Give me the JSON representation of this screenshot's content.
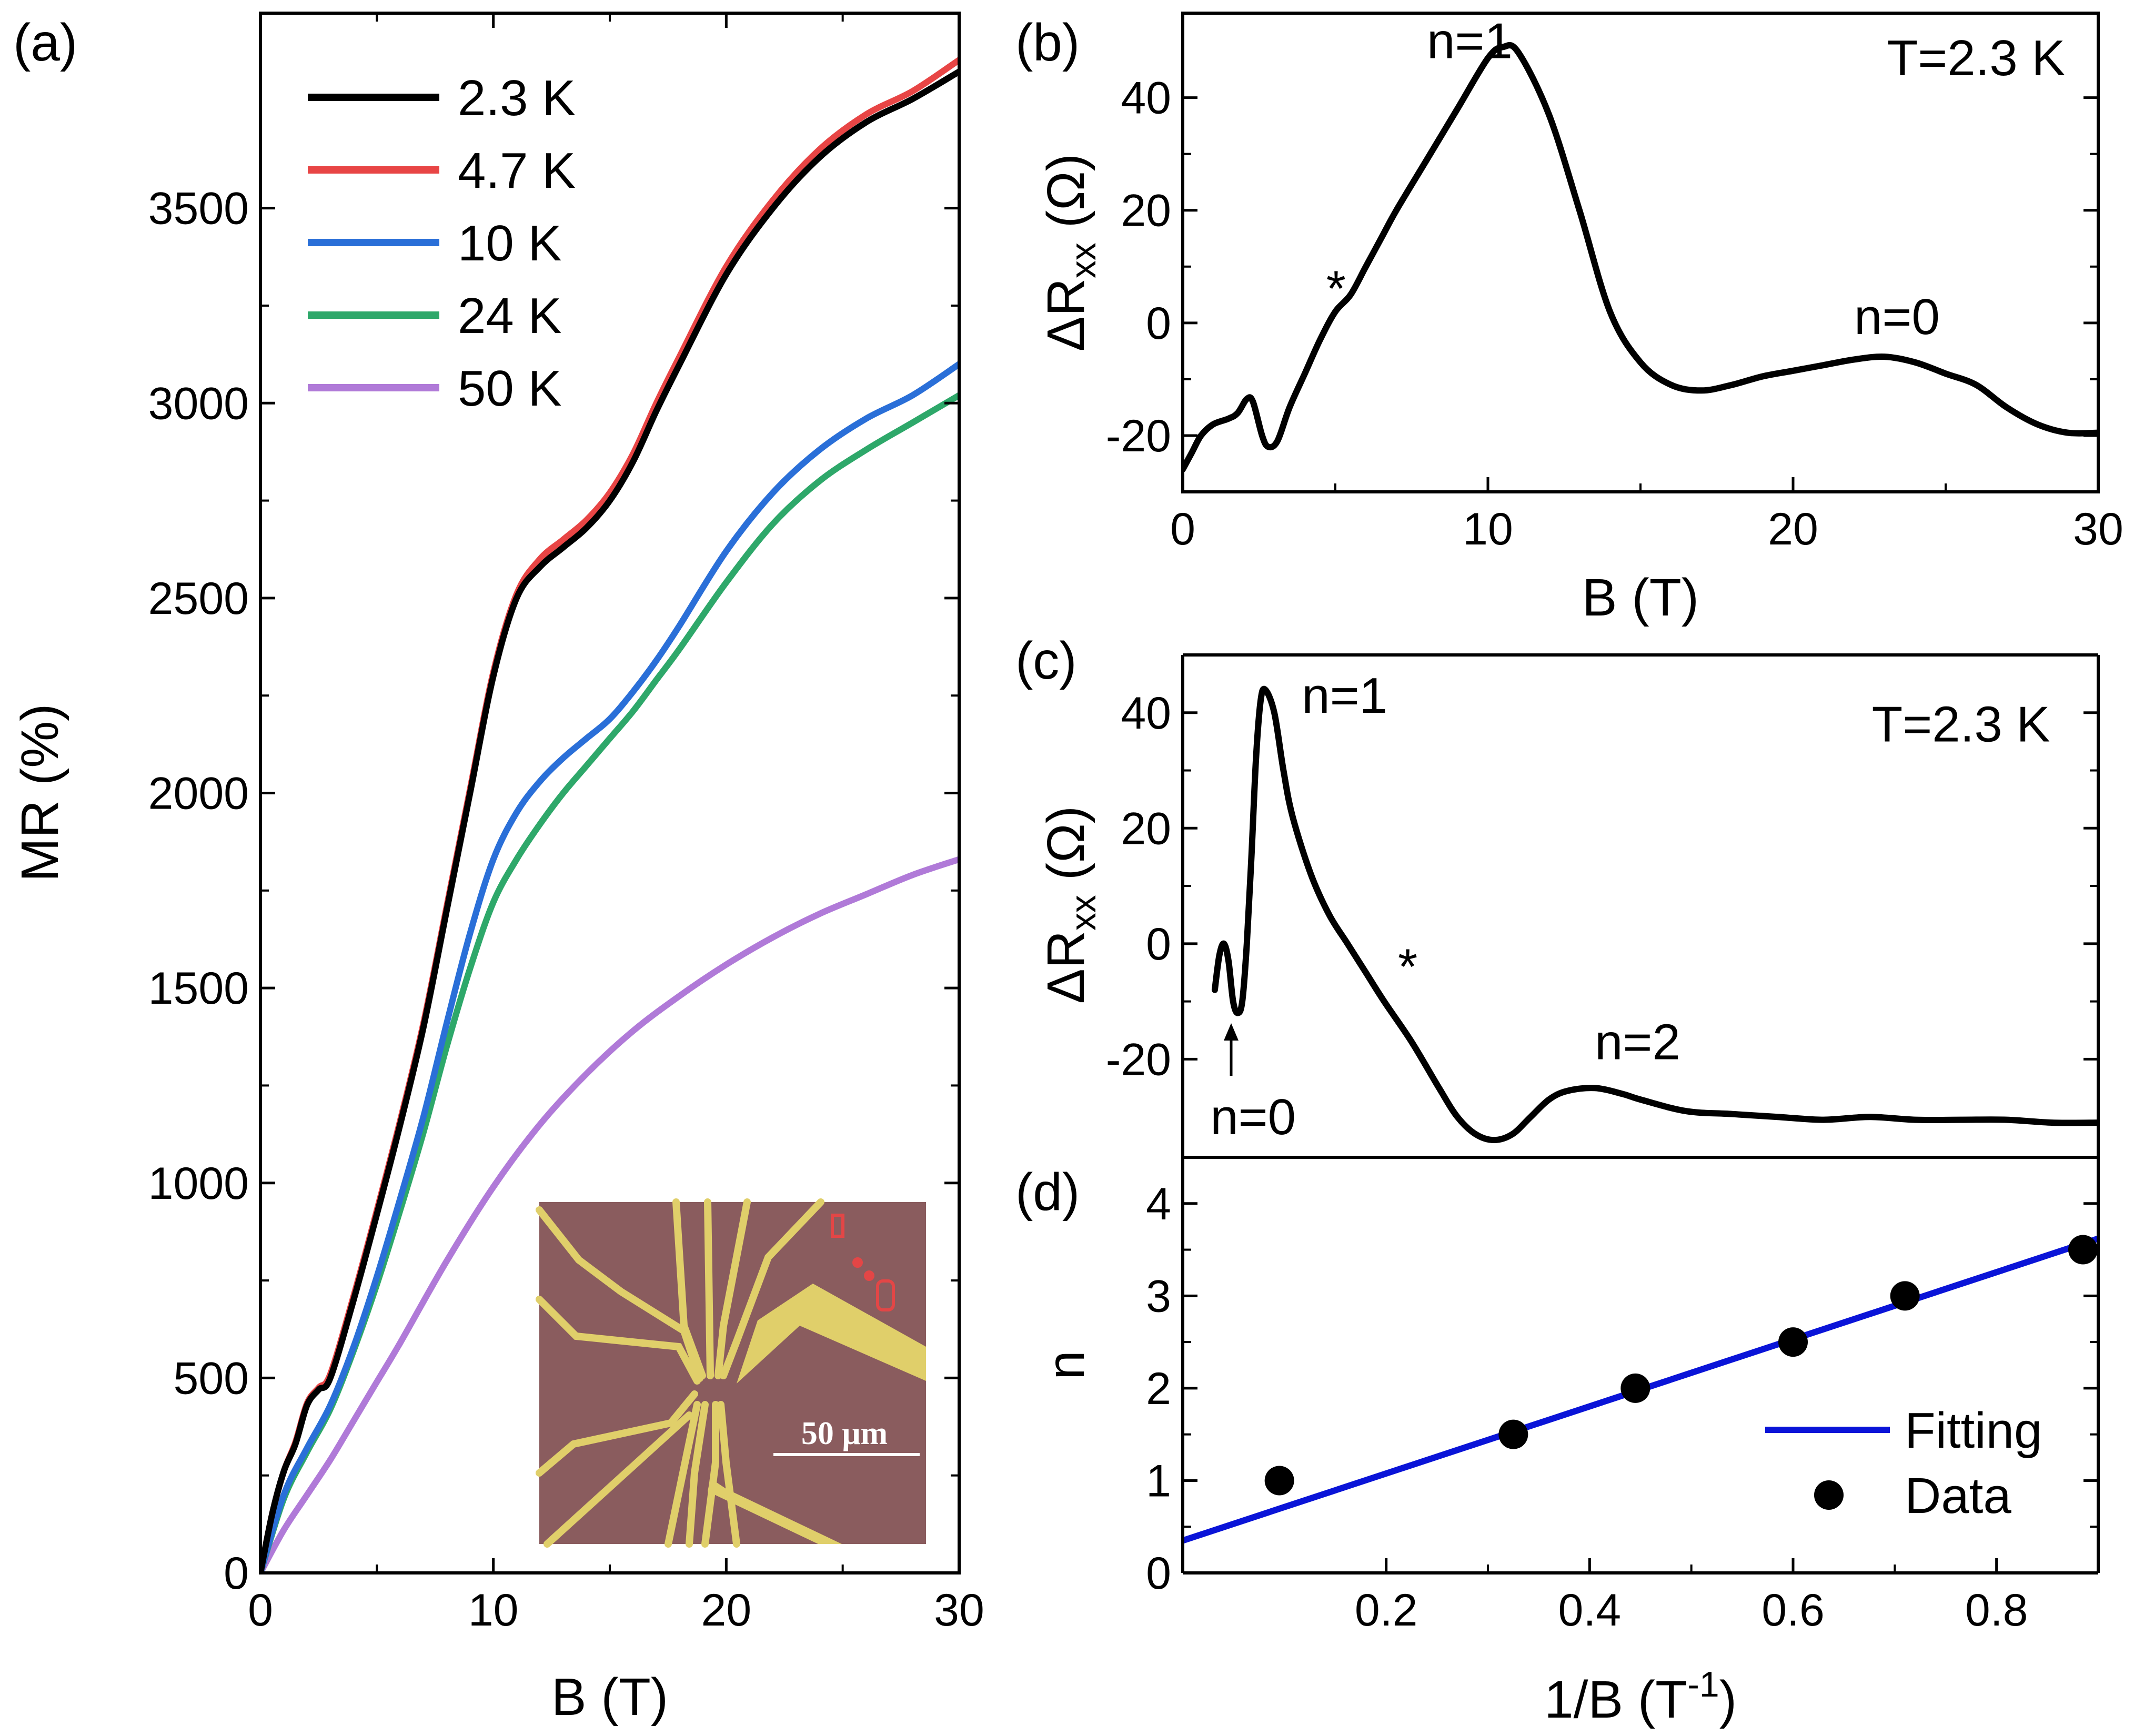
{
  "figure": {
    "panel_labels": [
      "(a)",
      "(b)",
      "(c)",
      "(d)"
    ],
    "inset": {
      "scale_bar_label": "50 μm",
      "description_colors": {
        "substrate": "#8a5c5e",
        "electrodes": "#e0cf6a"
      }
    }
  },
  "chart_data": [
    {
      "id": "a",
      "type": "line",
      "xlabel": "B (T)",
      "ylabel": "MR (%)",
      "xlim": [
        0,
        30
      ],
      "ylim": [
        0,
        4000
      ],
      "xticks": [
        0,
        10,
        20,
        30
      ],
      "yticks": [
        0,
        500,
        1000,
        1500,
        2000,
        2500,
        3000,
        3500
      ],
      "legend_position": "top-left",
      "series": [
        {
          "name": "2.3 K",
          "color": "#000000",
          "x": [
            0,
            0.5,
            1,
            1.5,
            2,
            2.5,
            3,
            4,
            5,
            6,
            7,
            8,
            9,
            10,
            11,
            12,
            13,
            14,
            15,
            16,
            17,
            18,
            20,
            22,
            24,
            26,
            28,
            30
          ],
          "values": [
            0,
            150,
            260,
            330,
            430,
            470,
            500,
            700,
            920,
            1150,
            1400,
            1700,
            2000,
            2300,
            2500,
            2580,
            2630,
            2680,
            2750,
            2850,
            2980,
            3100,
            3330,
            3500,
            3630,
            3720,
            3780,
            3850
          ]
        },
        {
          "name": "4.7 K",
          "color": "#e84545",
          "x": [
            0,
            0.5,
            1,
            1.5,
            2,
            2.5,
            3,
            4,
            5,
            6,
            7,
            8,
            9,
            10,
            11,
            12,
            13,
            14,
            15,
            16,
            17,
            18,
            20,
            22,
            24,
            26,
            28,
            30
          ],
          "values": [
            0,
            150,
            260,
            335,
            435,
            475,
            510,
            710,
            930,
            1160,
            1410,
            1710,
            2010,
            2310,
            2510,
            2600,
            2650,
            2700,
            2770,
            2870,
            3000,
            3120,
            3350,
            3520,
            3650,
            3740,
            3800,
            3880
          ]
        },
        {
          "name": "10 K",
          "color": "#2a6fd8",
          "x": [
            0,
            1,
            2,
            3,
            4,
            5,
            6,
            7,
            8,
            9,
            10,
            11,
            12,
            13,
            14,
            15,
            16,
            17,
            18,
            20,
            22,
            24,
            26,
            28,
            30
          ],
          "values": [
            0,
            200,
            320,
            430,
            580,
            760,
            960,
            1170,
            1410,
            1640,
            1830,
            1950,
            2030,
            2090,
            2140,
            2190,
            2260,
            2340,
            2430,
            2620,
            2770,
            2880,
            2960,
            3020,
            3100
          ]
        },
        {
          "name": "24 K",
          "color": "#2ea86a",
          "x": [
            0,
            1,
            2,
            3,
            4,
            5,
            6,
            7,
            8,
            9,
            10,
            11,
            12,
            13,
            14,
            15,
            16,
            17,
            18,
            20,
            22,
            24,
            26,
            28,
            30
          ],
          "values": [
            0,
            190,
            310,
            420,
            570,
            740,
            930,
            1130,
            1350,
            1550,
            1720,
            1830,
            1920,
            2000,
            2070,
            2140,
            2210,
            2290,
            2370,
            2540,
            2690,
            2800,
            2880,
            2950,
            3020
          ]
        },
        {
          "name": "50 K",
          "color": "#b07ad8",
          "x": [
            0,
            1,
            2,
            3,
            4,
            5,
            6,
            8,
            10,
            12,
            14,
            16,
            18,
            20,
            22,
            24,
            26,
            28,
            30
          ],
          "values": [
            0,
            110,
            200,
            290,
            390,
            490,
            590,
            800,
            990,
            1150,
            1280,
            1390,
            1480,
            1560,
            1630,
            1690,
            1740,
            1790,
            1830
          ]
        }
      ]
    },
    {
      "id": "b",
      "type": "line",
      "xlabel": "B (T)",
      "ylabel": "ΔR",
      "ylabel_sub": "xx",
      "ylabel_unit": " (Ω)",
      "xlim": [
        0,
        30
      ],
      "ylim": [
        -30,
        55
      ],
      "xticks": [
        0,
        10,
        20,
        30
      ],
      "yticks": [
        -20,
        0,
        20,
        40
      ],
      "annotations": [
        {
          "text": "n=1",
          "x": 8,
          "y": 47
        },
        {
          "text": "*",
          "x": 4.7,
          "y": 3
        },
        {
          "text": "n=0",
          "x": 22,
          "y": -2
        },
        {
          "text": "T=2.3 K",
          "x": 26,
          "y": 44
        }
      ],
      "series": [
        {
          "name": "ΔRxx",
          "color": "#000000",
          "x": [
            0,
            0.3,
            0.6,
            1,
            1.5,
            1.8,
            2.1,
            2.3,
            2.6,
            2.8,
            3.1,
            3.5,
            4,
            4.5,
            5,
            5.5,
            6,
            6.5,
            7,
            8,
            9,
            10,
            10.5,
            11,
            12,
            13,
            14,
            15,
            16,
            17,
            18,
            19,
            20,
            21,
            22,
            23,
            24,
            25,
            26,
            27,
            28,
            29,
            30
          ],
          "values": [
            -26,
            -23,
            -20,
            -18,
            -17,
            -16,
            -13.5,
            -14,
            -20,
            -22,
            -21,
            -15,
            -9,
            -3,
            2,
            5,
            10,
            15,
            20,
            29,
            38,
            47,
            49,
            48,
            37,
            20,
            2,
            -7,
            -11,
            -12,
            -11,
            -9.5,
            -8.5,
            -7.5,
            -6.5,
            -6,
            -7,
            -9,
            -11,
            -15,
            -18,
            -19.5,
            -19.5
          ]
        }
      ]
    },
    {
      "id": "c",
      "type": "line",
      "xlabel": "",
      "ylabel": "ΔR",
      "ylabel_sub": "xx",
      "ylabel_unit": " (Ω)",
      "xlim": [
        0,
        1
      ],
      "ylim": [
        -37,
        50
      ],
      "yticks": [
        -20,
        0,
        20,
        40
      ],
      "annotations": [
        {
          "text": "n=1",
          "x": 0.13,
          "y": 40
        },
        {
          "text": "*",
          "x": 0.235,
          "y": -7
        },
        {
          "text": "n=2",
          "x": 0.45,
          "y": -20
        },
        {
          "text": "n=0",
          "x": 0.03,
          "y": -33
        },
        {
          "text": "T=2.3 K",
          "x": 0.85,
          "y": 35
        }
      ],
      "series": [
        {
          "name": "ΔRxx",
          "color": "#000000",
          "x": [
            0.035,
            0.04,
            0.045,
            0.05,
            0.055,
            0.06,
            0.065,
            0.07,
            0.075,
            0.08,
            0.085,
            0.09,
            0.1,
            0.11,
            0.12,
            0.14,
            0.16,
            0.18,
            0.2,
            0.22,
            0.25,
            0.28,
            0.3,
            0.32,
            0.34,
            0.36,
            0.38,
            0.4,
            0.42,
            0.45,
            0.48,
            0.5,
            0.55,
            0.6,
            0.65,
            0.7,
            0.75,
            0.8,
            0.85,
            0.9,
            0.95,
            1.0
          ],
          "values": [
            -8,
            -2,
            0,
            -3,
            -10,
            -12,
            -10,
            0,
            15,
            32,
            42,
            44,
            40,
            30,
            22,
            12,
            5,
            0,
            -5,
            -10,
            -17,
            -25,
            -30,
            -33,
            -34,
            -33,
            -30,
            -27,
            -25.5,
            -25,
            -26,
            -27,
            -29,
            -29.5,
            -30,
            -30.5,
            -30,
            -30.5,
            -30.5,
            -30.5,
            -31,
            -31
          ]
        }
      ]
    },
    {
      "id": "d",
      "type": "scatter",
      "xlabel": "1/B (T",
      "xlabel_sup": "-1",
      "xlabel_end": ")",
      "ylabel": "n",
      "xlim": [
        0,
        0.9
      ],
      "ylim": [
        0,
        4.5
      ],
      "xticks": [
        0.2,
        0.4,
        0.6,
        0.8
      ],
      "yticks": [
        0,
        1,
        2,
        3,
        4
      ],
      "legend_position": "bottom-right",
      "series": [
        {
          "name": "Fitting",
          "type": "line",
          "color": "#0a14d8",
          "x": [
            0,
            0.9
          ],
          "values": [
            0.35,
            3.62
          ]
        },
        {
          "name": "Data",
          "type": "scatter",
          "color": "#000000",
          "x": [
            0.095,
            0.325,
            0.445,
            0.6,
            0.71,
            0.885
          ],
          "values": [
            1,
            1.5,
            2,
            2.5,
            3,
            3.5
          ]
        }
      ]
    }
  ]
}
